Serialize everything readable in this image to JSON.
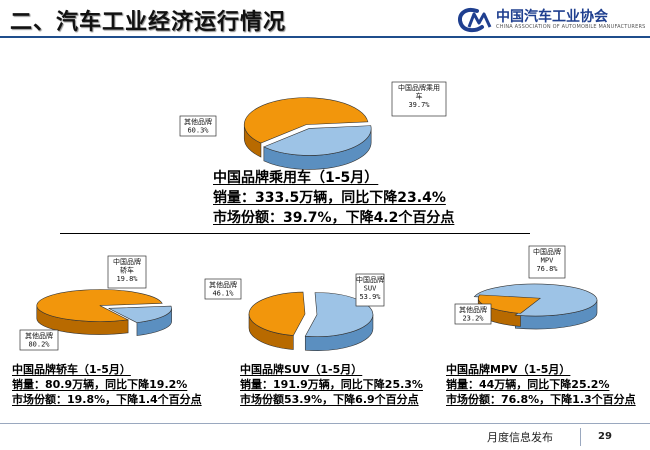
{
  "header": {
    "title": "二、汽车工业经济运行情况"
  },
  "logo": {
    "name": "中国汽车工业协会",
    "subtitle": "CHINA ASSOCIATION OF AUTOMOBILE MANUFACTURERS"
  },
  "colors": {
    "orange": "#f2960c",
    "blue": "#9dc3e6",
    "rule": "#1f4e8c"
  },
  "captions": {
    "main": {
      "line1": "中国品牌乘用车（1-5月）",
      "line2": "销量：333.5万辆，同比下降23.4%",
      "line3": "市场份额：39.7%，下降4.2个百分点"
    },
    "sedan": {
      "line1": "中国品牌轿车（1-5月）",
      "line2": "销量：80.9万辆，同比下降19.2%",
      "line3": "市场份额：19.8%，下降1.4个百分点"
    },
    "suv": {
      "line1": "中国品牌SUV（1-5月）",
      "line2": "销量：191.9万辆，同比下降25.3%",
      "line3": "市场份额53.9%，下降6.9个百分点"
    },
    "mpv": {
      "line1": "中国品牌MPV（1-5月）",
      "line2": "销量：44万辆，同比下降25.2%",
      "line3": "市场份额：76.8%，下降1.3个百分点"
    }
  },
  "footer": {
    "text": "月度信息发布",
    "page": "29"
  },
  "chart_data": [
    {
      "type": "pie",
      "categories": [
        "中国品牌乘用车",
        "其他品牌"
      ],
      "values": [
        39.7,
        60.3
      ],
      "colors": [
        "#9dc3e6",
        "#f2960c"
      ],
      "labels": [
        [
          "中国品牌乘用",
          "车",
          "39.7%"
        ],
        [
          "其他品牌",
          "60.3%"
        ]
      ]
    },
    {
      "type": "pie",
      "categories": [
        "中国品牌轿车",
        "其他品牌"
      ],
      "values": [
        19.8,
        80.2
      ],
      "colors": [
        "#9dc3e6",
        "#f2960c"
      ],
      "labels": [
        [
          "中国品牌",
          "轿车",
          "19.8%"
        ],
        [
          "其他品牌",
          "80.2%"
        ]
      ]
    },
    {
      "type": "pie",
      "categories": [
        "中国品牌SUV",
        "其他品牌"
      ],
      "values": [
        53.9,
        46.1
      ],
      "colors": [
        "#9dc3e6",
        "#f2960c"
      ],
      "labels": [
        [
          "中国品牌",
          "SUV",
          "53.9%"
        ],
        [
          "其他品牌",
          "46.1%"
        ]
      ]
    },
    {
      "type": "pie",
      "categories": [
        "中国品牌MPV",
        "其他品牌"
      ],
      "values": [
        76.8,
        23.2
      ],
      "colors": [
        "#9dc3e6",
        "#f2960c"
      ],
      "labels": [
        [
          "中国品牌",
          "MPV",
          "76.8%"
        ],
        [
          "其他品牌",
          "23.2%"
        ]
      ]
    }
  ]
}
